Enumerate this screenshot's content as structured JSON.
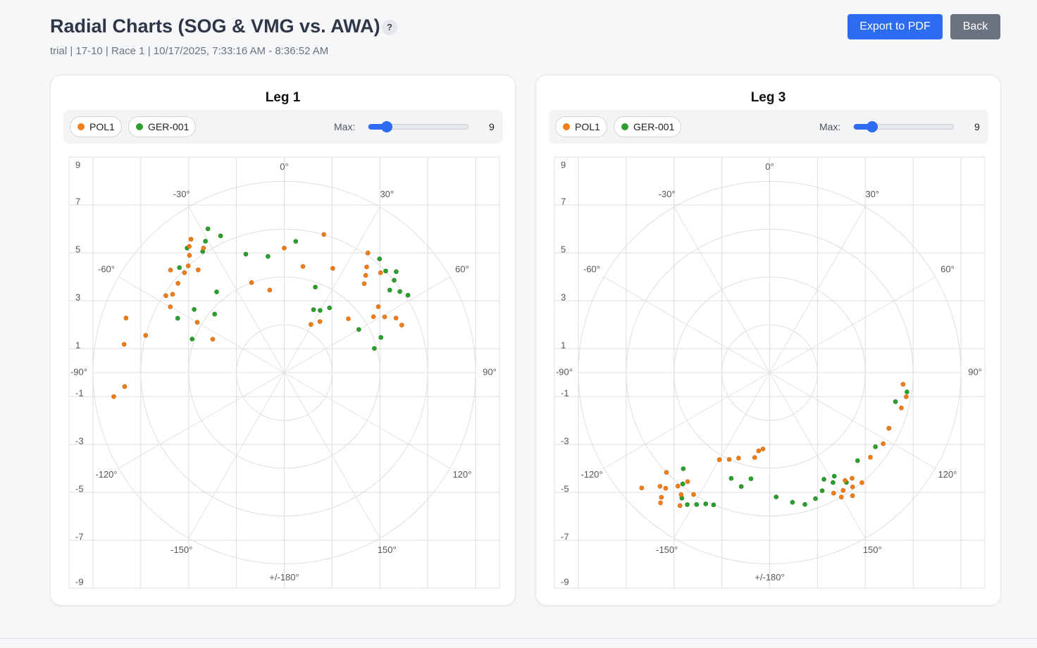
{
  "header": {
    "title": "Radial Charts (SOG & VMG vs. AWA)",
    "help": "?",
    "subtitle": "trial | 17-10 | Race 1 | 10/17/2025, 7:33:16 AM - 8:36:52 AM"
  },
  "buttons": {
    "export": "Export to PDF",
    "back": "Back"
  },
  "chart_data": [
    {
      "type": "polar-scatter",
      "title": "Leg 1",
      "max_label": "Max:",
      "max": 9,
      "xlim": [
        -9,
        9
      ],
      "ylim": [
        -9,
        9
      ],
      "xticks": [
        -8,
        -6,
        -4,
        -2,
        0,
        2,
        4,
        6,
        8
      ],
      "yticks": [
        9,
        7,
        5,
        3,
        1,
        -1,
        -3,
        -5,
        -7,
        -9
      ],
      "rticks": [
        2,
        4,
        6,
        8
      ],
      "angle_ticks": [
        {
          "value": 0,
          "label": "0°"
        },
        {
          "value": 30,
          "label": "30°"
        },
        {
          "value": 60,
          "label": "60°"
        },
        {
          "value": 90,
          "label": "90°"
        },
        {
          "value": 120,
          "label": "120°"
        },
        {
          "value": 150,
          "label": "150°"
        },
        {
          "value": 180,
          "label": "+/-180°"
        },
        {
          "value": -150,
          "label": "-150°"
        },
        {
          "value": -120,
          "label": "-120°"
        },
        {
          "value": -90,
          "label": "-90°"
        },
        {
          "value": -60,
          "label": "-60°"
        },
        {
          "value": -30,
          "label": "-30°"
        }
      ],
      "series": [
        {
          "name": "POL1",
          "color": "#f07f1a",
          "theta": [
            -39,
            -37,
            -42,
            -35,
            -45,
            -50,
            -55,
            -57,
            -60,
            -48,
            -40,
            -33,
            -71,
            -80,
            -95,
            -98,
            -75,
            -65,
            -60,
            -20,
            0,
            10,
            16,
            29,
            35,
            38,
            35,
            40,
            44,
            42,
            55,
            61,
            64,
            58,
            68,
            50,
            25,
            -10
          ],
          "r": [
            6.3,
            6.6,
            6.0,
            6.8,
            5.9,
            5.8,
            5.7,
            5.9,
            5.5,
            6.4,
            5.6,
            6.2,
            7.0,
            6.8,
            6.7,
            7.2,
            6.0,
            3.3,
            4.2,
            4.0,
            5.2,
            4.5,
            6.0,
            2.3,
            2.6,
            5.6,
            6.1,
            5.3,
            5.8,
            5.0,
            4.8,
            4.8,
            5.2,
            4.4,
            5.3,
            3.5,
            4.8,
            3.5
          ]
        },
        {
          "name": "GER-001",
          "color": "#2ca02c",
          "theta": [
            -31,
            -28,
            -34,
            -38,
            -45,
            -25,
            -18,
            -63,
            -55,
            -50,
            -40,
            -8,
            5,
            30,
            25,
            35,
            45,
            50,
            52,
            48,
            55,
            58,
            40,
            75,
            70,
            60,
            20,
            -70
          ],
          "r": [
            6.4,
            6.8,
            6.1,
            6.6,
            6.2,
            6.3,
            5.2,
            5.0,
            4.6,
            3.8,
            4.4,
            4.9,
            5.5,
            3.0,
            2.9,
            3.3,
            6.0,
            6.0,
            5.6,
            6.3,
            5.9,
            6.1,
            6.2,
            3.9,
            4.3,
            3.6,
            3.8,
            4.1
          ]
        }
      ]
    },
    {
      "type": "polar-scatter",
      "title": "Leg 3",
      "max_label": "Max:",
      "max": 9,
      "xlim": [
        -9,
        9
      ],
      "ylim": [
        -9,
        9
      ],
      "xticks": [
        -8,
        -6,
        -4,
        -2,
        0,
        2,
        4,
        6,
        8
      ],
      "yticks": [
        9,
        7,
        5,
        3,
        1,
        -1,
        -3,
        -5,
        -7,
        -9
      ],
      "rticks": [
        2,
        4,
        6,
        8
      ],
      "angle_ticks": [
        {
          "value": 0,
          "label": "0°"
        },
        {
          "value": 30,
          "label": "30°"
        },
        {
          "value": 60,
          "label": "60°"
        },
        {
          "value": 90,
          "label": "90°"
        },
        {
          "value": 120,
          "label": "120°"
        },
        {
          "value": 150,
          "label": "150°"
        },
        {
          "value": 180,
          "label": "+/-180°"
        },
        {
          "value": -150,
          "label": "-150°"
        },
        {
          "value": -120,
          "label": "-120°"
        },
        {
          "value": -90,
          "label": "-90°"
        },
        {
          "value": -60,
          "label": "-60°"
        },
        {
          "value": -30,
          "label": "-30°"
        }
      ],
      "series": [
        {
          "name": "POL1",
          "color": "#f07f1a",
          "theta": [
            -141,
            -140,
            -138,
            -144,
            -136,
            -146,
            -134,
            -143,
            -139,
            -148,
            -132,
            -150,
            -155,
            -160,
            -172,
            -170,
            -175,
            148,
            145,
            150,
            146,
            152,
            142,
            140,
            144,
            122,
            115,
            105,
            95,
            100,
            130
          ],
          "r": [
            6.1,
            7.1,
            6.5,
            6.3,
            6.6,
            6.7,
            6.0,
            5.7,
            6.9,
            6.0,
            7.2,
            4.2,
            4.0,
            3.8,
            3.3,
            3.6,
            3.2,
            5.8,
            5.5,
            6.0,
            6.2,
            5.7,
            5.6,
            6.0,
            5.9,
            5.6,
            5.5,
            5.7,
            5.6,
            5.8,
            5.5
          ]
        },
        {
          "name": "GER-001",
          "color": "#2ca02c",
          "theta": [
            -151,
            -148,
            -154,
            -145,
            -157,
            -142,
            -166,
            -160,
            177,
            170,
            165,
            160,
            153,
            150,
            156,
            148,
            145,
            135,
            125,
            115,
            103,
            98,
            -138,
            -170
          ],
          "r": [
            6.3,
            6.5,
            6.1,
            6.4,
            6.0,
            5.9,
            4.9,
            4.7,
            5.2,
            5.5,
            5.7,
            5.6,
            5.0,
            5.3,
            5.4,
            5.1,
            5.6,
            5.2,
            5.4,
            5.5,
            5.4,
            5.8,
            5.4,
            4.5
          ]
        }
      ]
    }
  ]
}
